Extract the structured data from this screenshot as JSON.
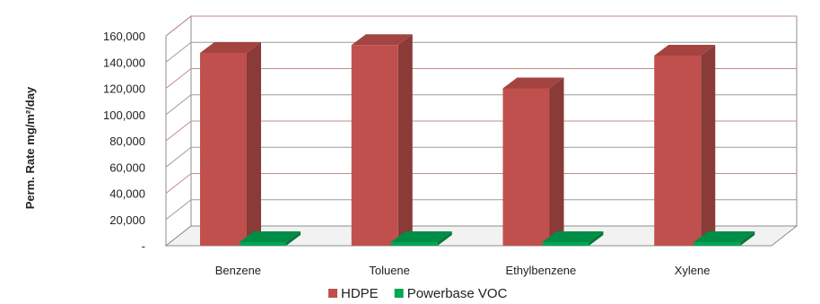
{
  "chart_data": {
    "type": "bar",
    "title": "",
    "xlabel": "",
    "ylabel": "Perm. Rate mg/m²/day",
    "categories": [
      "Benzene",
      "Toluene",
      "Ethylbenzene",
      "Xylene"
    ],
    "ylim": [
      0,
      160000
    ],
    "yticks": [
      0,
      20000,
      40000,
      60000,
      80000,
      100000,
      120000,
      140000,
      160000
    ],
    "ytick_labels": [
      "-",
      "20,000",
      "40,000",
      "60,000",
      "80,000",
      "100,000",
      "120,000",
      "140,000",
      "160,000"
    ],
    "grid": true,
    "three_d": true,
    "legend_position": "bottom",
    "series": [
      {
        "name": "HDPE",
        "color": "#c0504d",
        "values": [
          147000,
          153000,
          120000,
          145000
        ]
      },
      {
        "name": "Powerbase VOC",
        "color": "#00a651",
        "values": [
          1500,
          2000,
          800,
          1000
        ]
      }
    ]
  }
}
